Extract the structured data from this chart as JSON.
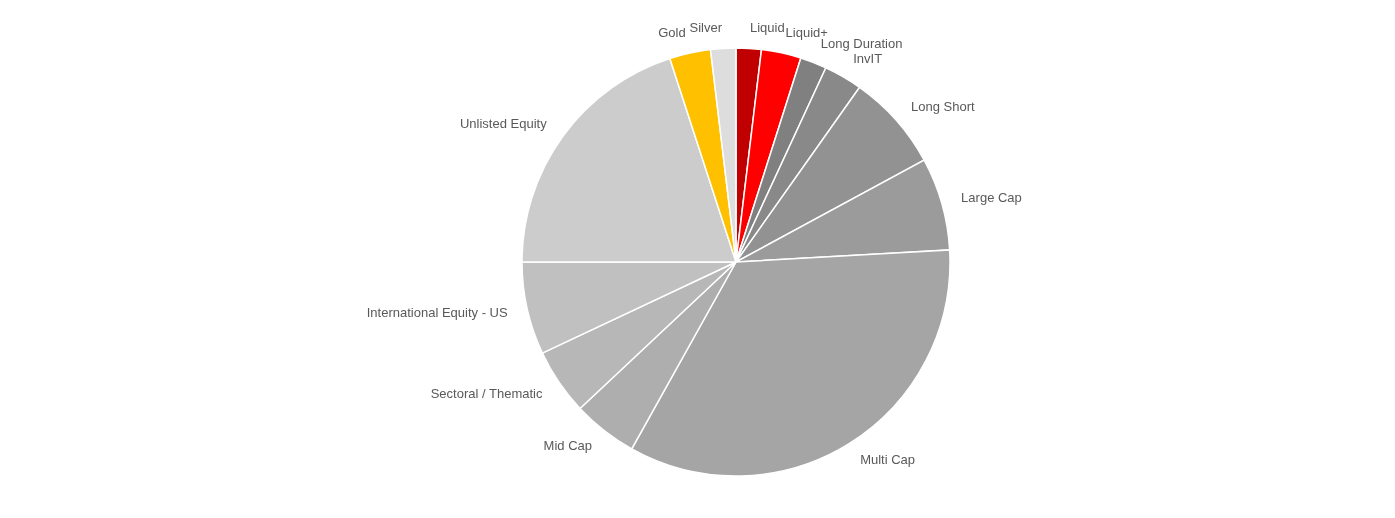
{
  "chart_data": {
    "type": "pie",
    "categories": [
      "Liquid",
      "Liquid+",
      "Long Duration",
      "InvIT",
      "Long Short",
      "Large Cap",
      "Multi Cap",
      "Mid Cap",
      "Sectoral / Thematic",
      "International Equity - US",
      "Unlisted Equity",
      "Gold",
      "Silver"
    ],
    "values": [
      1.9,
      3.0,
      2.0,
      2.9,
      7.3,
      7.0,
      34.0,
      4.9,
      5.0,
      7.0,
      20.0,
      3.1,
      1.9
    ],
    "colors": [
      "#c00000",
      "#ff0000",
      "#808080",
      "#898989",
      "#929292",
      "#9b9b9b",
      "#a5a5a5",
      "#aeaeae",
      "#b7b7b7",
      "#c0c0c0",
      "#cccccc",
      "#ffc000",
      "#dddddd"
    ]
  }
}
